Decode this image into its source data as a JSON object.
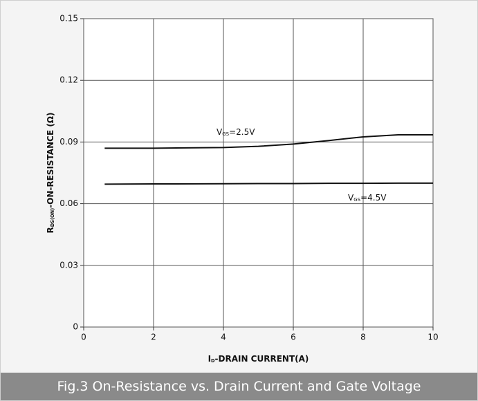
{
  "caption": "Fig.3 On-Resistance vs. Drain Current and Gate Voltage",
  "chart_data": {
    "type": "line",
    "xlabel": {
      "main": "I",
      "sub": "D",
      "rest": "-DRAIN CURRENT(A)"
    },
    "ylabel": {
      "main": "R",
      "sub": "DS(ON)",
      "rest": "-ON-RESISTANCE (Ω)"
    },
    "xlim": [
      0,
      10
    ],
    "xticks": [
      0,
      2,
      4,
      6,
      8,
      10
    ],
    "ylim": [
      0,
      0.15
    ],
    "yticks": [
      0,
      0.03,
      0.06,
      0.09,
      0.12,
      0.15
    ],
    "grid": true,
    "x": [
      0.6,
      2,
      4,
      5,
      6,
      7,
      8,
      9,
      10
    ],
    "series": [
      {
        "name": {
          "main": "V",
          "sub": "GS",
          "rest": "=2.5V"
        },
        "color": "#111111",
        "values": [
          0.087,
          0.087,
          0.0873,
          0.0879,
          0.089,
          0.0907,
          0.0925,
          0.0935,
          0.0935
        ]
      },
      {
        "name": {
          "main": "V",
          "sub": "GS",
          "rest": "=4.5V"
        },
        "color": "#111111",
        "values": [
          0.0695,
          0.0696,
          0.0697,
          0.0698,
          0.0698,
          0.0699,
          0.0699,
          0.07,
          0.07
        ]
      }
    ]
  }
}
